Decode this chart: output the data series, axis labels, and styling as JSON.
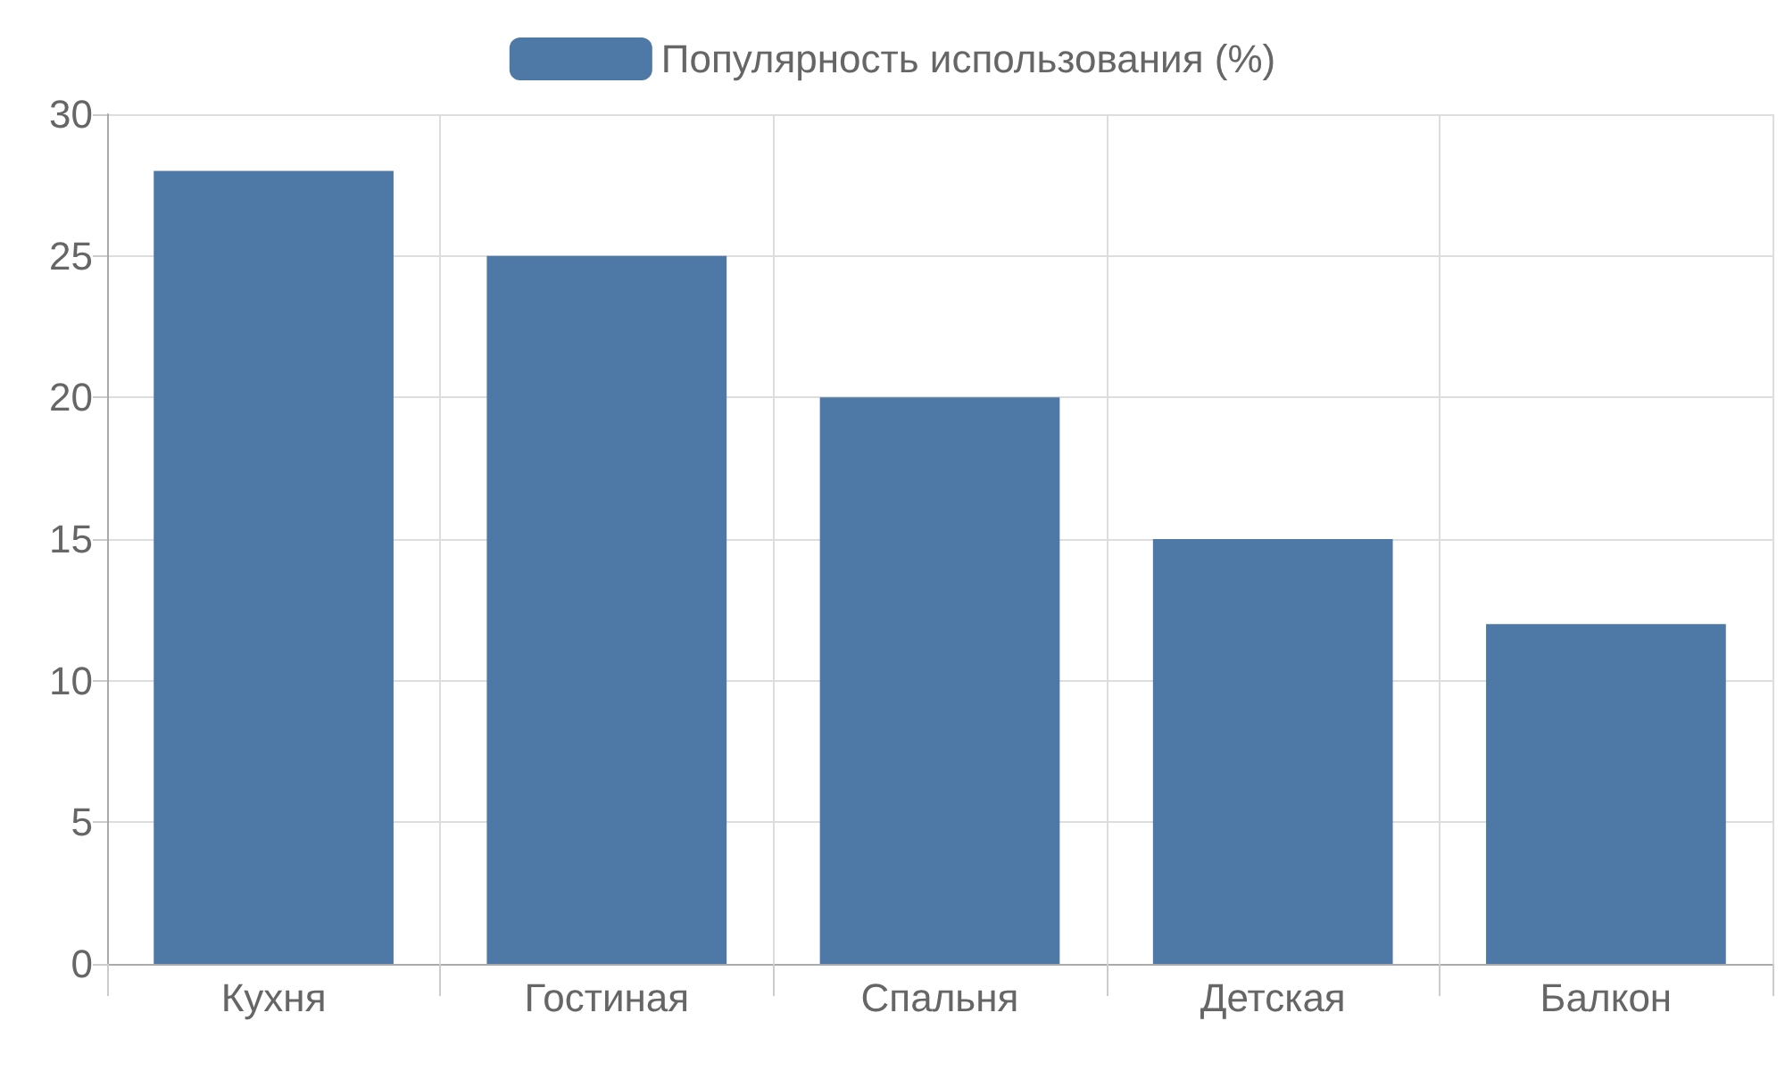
{
  "chart_data": {
    "type": "bar",
    "categories": [
      "Кухня",
      "Гостиная",
      "Спальня",
      "Детская",
      "Балкон"
    ],
    "series": [
      {
        "name": "Популярность использования (%)",
        "color": "#4e79a7",
        "values": [
          28,
          25,
          20,
          15,
          12
        ]
      }
    ],
    "ylim": [
      0,
      30
    ],
    "yticks": [
      0,
      5,
      10,
      15,
      20,
      25,
      30
    ],
    "grid": true,
    "legend": "top"
  }
}
